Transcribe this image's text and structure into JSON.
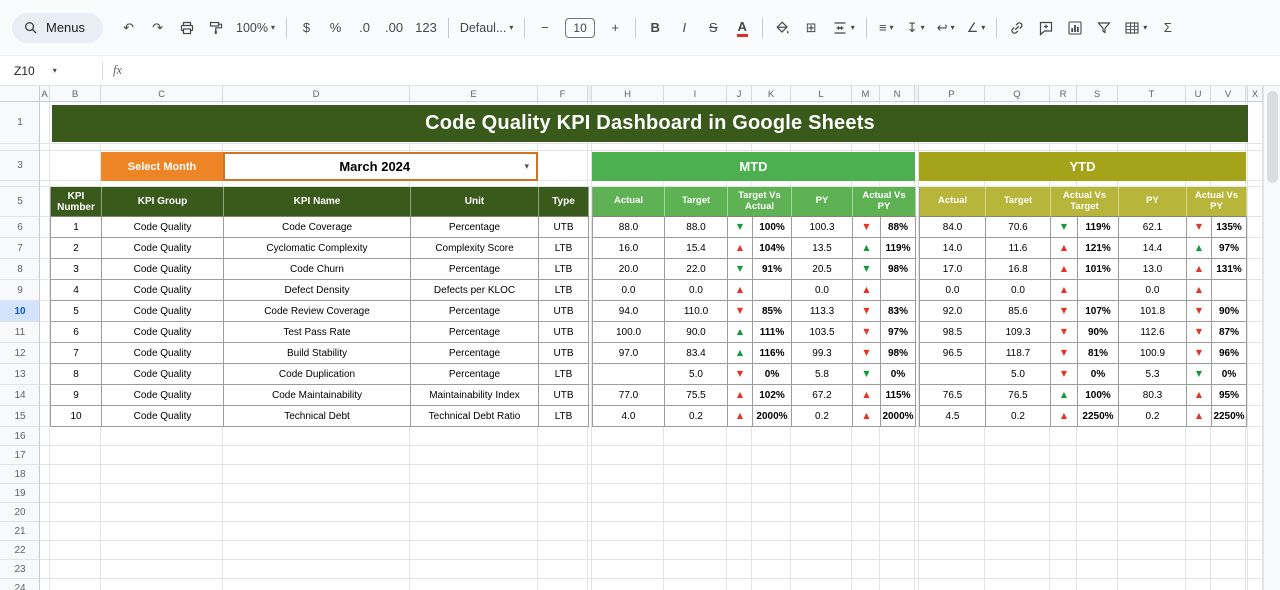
{
  "title": "Code Quality KPI Dashboard in Google Sheets",
  "toolbar": {
    "menus_label": "Menus",
    "items": [
      {
        "name": "undo",
        "glyph": "↶"
      },
      {
        "name": "redo",
        "glyph": "↷"
      },
      {
        "name": "print",
        "svg": "print"
      },
      {
        "name": "paint-format",
        "svg": "paint"
      },
      {
        "name": "zoom",
        "label": "100%",
        "caret": true
      },
      {
        "divider": true
      },
      {
        "name": "format-currency",
        "glyph": "$"
      },
      {
        "name": "format-percent",
        "glyph": "%"
      },
      {
        "name": "decrease-decimal",
        "glyph": ".0"
      },
      {
        "name": "increase-decimal",
        "glyph": ".00"
      },
      {
        "name": "more-formats",
        "glyph": "123"
      },
      {
        "divider": true
      },
      {
        "name": "font",
        "label": "Defaul...",
        "caret": true
      },
      {
        "divider": true
      },
      {
        "name": "decrease-font-size",
        "glyph": "−"
      },
      {
        "name": "font-size",
        "value": "10"
      },
      {
        "name": "increase-font-size",
        "glyph": "+"
      },
      {
        "divider": true
      },
      {
        "name": "bold",
        "glyph": "B",
        "style": "bold"
      },
      {
        "name": "italic",
        "glyph": "I",
        "style": "italic"
      },
      {
        "name": "strikethrough",
        "glyph": "S",
        "style": "strike"
      },
      {
        "name": "text-color",
        "glyph": "A",
        "style": "color-a"
      },
      {
        "divider": true
      },
      {
        "name": "fill-color",
        "svg": "fill"
      },
      {
        "name": "borders",
        "glyph": "⊞"
      },
      {
        "name": "merge-cells",
        "svg": "merge",
        "caret": true
      },
      {
        "divider": true
      },
      {
        "name": "horizontal-align",
        "glyph": "≡",
        "caret": true
      },
      {
        "name": "vertical-align",
        "glyph": "↧",
        "caret": true
      },
      {
        "name": "text-wrap",
        "glyph": "↩",
        "caret": true
      },
      {
        "name": "text-rotation",
        "glyph": "∠",
        "caret": true
      },
      {
        "divider": true
      },
      {
        "name": "insert-link",
        "svg": "link"
      },
      {
        "name": "insert-comment",
        "svg": "comment"
      },
      {
        "name": "insert-chart",
        "svg": "chart"
      },
      {
        "name": "create-filter",
        "svg": "filter"
      },
      {
        "name": "table-views",
        "svg": "grid",
        "caret": true
      },
      {
        "name": "functions",
        "glyph": "Σ"
      }
    ]
  },
  "formula_bar": {
    "cell_ref": "Z10",
    "fx_label": "fx"
  },
  "sheet": {
    "columns": [
      "A",
      "B",
      "C",
      "D",
      "E",
      "F",
      "",
      "H",
      "I",
      "J",
      "K",
      "L",
      "M",
      "N",
      "",
      "P",
      "Q",
      "R",
      "S",
      "T",
      "U",
      "V",
      "",
      "X"
    ],
    "rows": [
      "1",
      "",
      "3",
      "",
      "5",
      "6",
      "7",
      "8",
      "9",
      "10",
      "11",
      "12",
      "13",
      "14",
      "15",
      "16",
      "17",
      "18",
      "19",
      "20",
      "21",
      "22",
      "23",
      "24"
    ],
    "highlighted_row": "10"
  },
  "controls": {
    "select_month_label": "Select Month",
    "month": "March 2024"
  },
  "sections": {
    "mtd": "MTD",
    "ytd": "YTD"
  },
  "table": {
    "left_headers": [
      "KPI Number",
      "KPI Group",
      "KPI Name",
      "Unit",
      "Type"
    ],
    "value_headers_mtd": [
      "Actual",
      "Target",
      "Target Vs Actual",
      "PY",
      "Actual Vs PY"
    ],
    "value_headers_ytd": [
      "Actual",
      "Target",
      "Actual Vs Target",
      "PY",
      "Actual Vs PY"
    ],
    "rows": [
      {
        "num": "1",
        "group": "Code Quality",
        "name": "Code Coverage",
        "unit": "Percentage",
        "type": "UTB",
        "mtd": {
          "actual": "88.0",
          "target": "88.0",
          "cmp1": {
            "d": "down",
            "c": "green",
            "p": "100%"
          },
          "py": "100.3",
          "cmp2": {
            "d": "down",
            "c": "red",
            "p": "88%"
          }
        },
        "ytd": {
          "actual": "84.0",
          "target": "70.6",
          "cmp1": {
            "d": "down",
            "c": "green",
            "p": "119%"
          },
          "py": "62.1",
          "cmp2": {
            "d": "down",
            "c": "red",
            "p": "135%"
          }
        }
      },
      {
        "num": "2",
        "group": "Code Quality",
        "name": "Cyclomatic Complexity",
        "unit": "Complexity Score",
        "type": "LTB",
        "mtd": {
          "actual": "16.0",
          "target": "15.4",
          "cmp1": {
            "d": "up",
            "c": "red",
            "p": "104%"
          },
          "py": "13.5",
          "cmp2": {
            "d": "up",
            "c": "green",
            "p": "119%"
          }
        },
        "ytd": {
          "actual": "14.0",
          "target": "11.6",
          "cmp1": {
            "d": "up",
            "c": "red",
            "p": "121%"
          },
          "py": "14.4",
          "cmp2": {
            "d": "up",
            "c": "green",
            "p": "97%"
          }
        }
      },
      {
        "num": "3",
        "group": "Code Quality",
        "name": "Code Churn",
        "unit": "Percentage",
        "type": "LTB",
        "mtd": {
          "actual": "20.0",
          "target": "22.0",
          "cmp1": {
            "d": "down",
            "c": "green",
            "p": "91%"
          },
          "py": "20.5",
          "cmp2": {
            "d": "down",
            "c": "green",
            "p": "98%"
          }
        },
        "ytd": {
          "actual": "17.0",
          "target": "16.8",
          "cmp1": {
            "d": "up",
            "c": "red",
            "p": "101%"
          },
          "py": "13.0",
          "cmp2": {
            "d": "up",
            "c": "red",
            "p": "131%"
          }
        }
      },
      {
        "num": "4",
        "group": "Code Quality",
        "name": "Defect Density",
        "unit": "Defects per KLOC",
        "type": "LTB",
        "mtd": {
          "actual": "0.0",
          "target": "0.0",
          "cmp1": {
            "d": "up",
            "c": "red",
            "p": ""
          },
          "py": "0.0",
          "cmp2": {
            "d": "up",
            "c": "red",
            "p": ""
          }
        },
        "ytd": {
          "actual": "0.0",
          "target": "0.0",
          "cmp1": {
            "d": "up",
            "c": "red",
            "p": ""
          },
          "py": "0.0",
          "cmp2": {
            "d": "up",
            "c": "red",
            "p": ""
          }
        }
      },
      {
        "num": "5",
        "group": "Code Quality",
        "name": "Code Review Coverage",
        "unit": "Percentage",
        "type": "UTB",
        "mtd": {
          "actual": "94.0",
          "target": "110.0",
          "cmp1": {
            "d": "down",
            "c": "red",
            "p": "85%"
          },
          "py": "113.3",
          "cmp2": {
            "d": "down",
            "c": "red",
            "p": "83%"
          }
        },
        "ytd": {
          "actual": "92.0",
          "target": "85.6",
          "cmp1": {
            "d": "down",
            "c": "red",
            "p": "107%"
          },
          "py": "101.8",
          "cmp2": {
            "d": "down",
            "c": "red",
            "p": "90%"
          }
        }
      },
      {
        "num": "6",
        "group": "Code Quality",
        "name": "Test Pass Rate",
        "unit": "Percentage",
        "type": "UTB",
        "mtd": {
          "actual": "100.0",
          "target": "90.0",
          "cmp1": {
            "d": "up",
            "c": "green",
            "p": "111%"
          },
          "py": "103.5",
          "cmp2": {
            "d": "down",
            "c": "red",
            "p": "97%"
          }
        },
        "ytd": {
          "actual": "98.5",
          "target": "109.3",
          "cmp1": {
            "d": "down",
            "c": "red",
            "p": "90%"
          },
          "py": "112.6",
          "cmp2": {
            "d": "down",
            "c": "red",
            "p": "87%"
          }
        }
      },
      {
        "num": "7",
        "group": "Code Quality",
        "name": "Build Stability",
        "unit": "Percentage",
        "type": "UTB",
        "mtd": {
          "actual": "97.0",
          "target": "83.4",
          "cmp1": {
            "d": "up",
            "c": "green",
            "p": "116%"
          },
          "py": "99.3",
          "cmp2": {
            "d": "down",
            "c": "red",
            "p": "98%"
          }
        },
        "ytd": {
          "actual": "96.5",
          "target": "118.7",
          "cmp1": {
            "d": "down",
            "c": "red",
            "p": "81%"
          },
          "py": "100.9",
          "cmp2": {
            "d": "down",
            "c": "red",
            "p": "96%"
          }
        }
      },
      {
        "num": "8",
        "group": "Code Quality",
        "name": "Code Duplication",
        "unit": "Percentage",
        "type": "LTB",
        "mtd": {
          "actual": "",
          "target": "5.0",
          "cmp1": {
            "d": "down",
            "c": "red",
            "p": "0%"
          },
          "py": "5.8",
          "cmp2": {
            "d": "down",
            "c": "green",
            "p": "0%"
          }
        },
        "ytd": {
          "actual": "",
          "target": "5.0",
          "cmp1": {
            "d": "down",
            "c": "red",
            "p": "0%"
          },
          "py": "5.3",
          "cmp2": {
            "d": "down",
            "c": "green",
            "p": "0%"
          }
        }
      },
      {
        "num": "9",
        "group": "Code Quality",
        "name": "Code Maintainability",
        "unit": "Maintainability Index",
        "type": "UTB",
        "mtd": {
          "actual": "77.0",
          "target": "75.5",
          "cmp1": {
            "d": "up",
            "c": "red",
            "p": "102%"
          },
          "py": "67.2",
          "cmp2": {
            "d": "up",
            "c": "red",
            "p": "115%"
          }
        },
        "ytd": {
          "actual": "76.5",
          "target": "76.5",
          "cmp1": {
            "d": "up",
            "c": "green",
            "p": "100%"
          },
          "py": "80.3",
          "cmp2": {
            "d": "up",
            "c": "red",
            "p": "95%"
          }
        }
      },
      {
        "num": "10",
        "group": "Code Quality",
        "name": "Technical Debt",
        "unit": "Technical Debt Ratio",
        "type": "LTB",
        "mtd": {
          "actual": "4.0",
          "target": "0.2",
          "cmp1": {
            "d": "up",
            "c": "red",
            "p": "2000%"
          },
          "py": "0.2",
          "cmp2": {
            "d": "up",
            "c": "red",
            "p": "2000%"
          }
        },
        "ytd": {
          "actual": "4.5",
          "target": "0.2",
          "cmp1": {
            "d": "up",
            "c": "red",
            "p": "2250%"
          },
          "py": "0.2",
          "cmp2": {
            "d": "up",
            "c": "red",
            "p": "2250%"
          }
        }
      }
    ]
  },
  "colors": {
    "title_bg": "#3a5a1c",
    "select_month_bg": "#ed8526",
    "month_border": "#cf7420",
    "mtd_banner": "#4caf50",
    "mtd_header": "#5fb254",
    "ytd_banner": "#a4a31a",
    "ytd_header": "#b7b63b",
    "arrow_green": "#0f9d3c",
    "arrow_red": "#ea3122"
  }
}
